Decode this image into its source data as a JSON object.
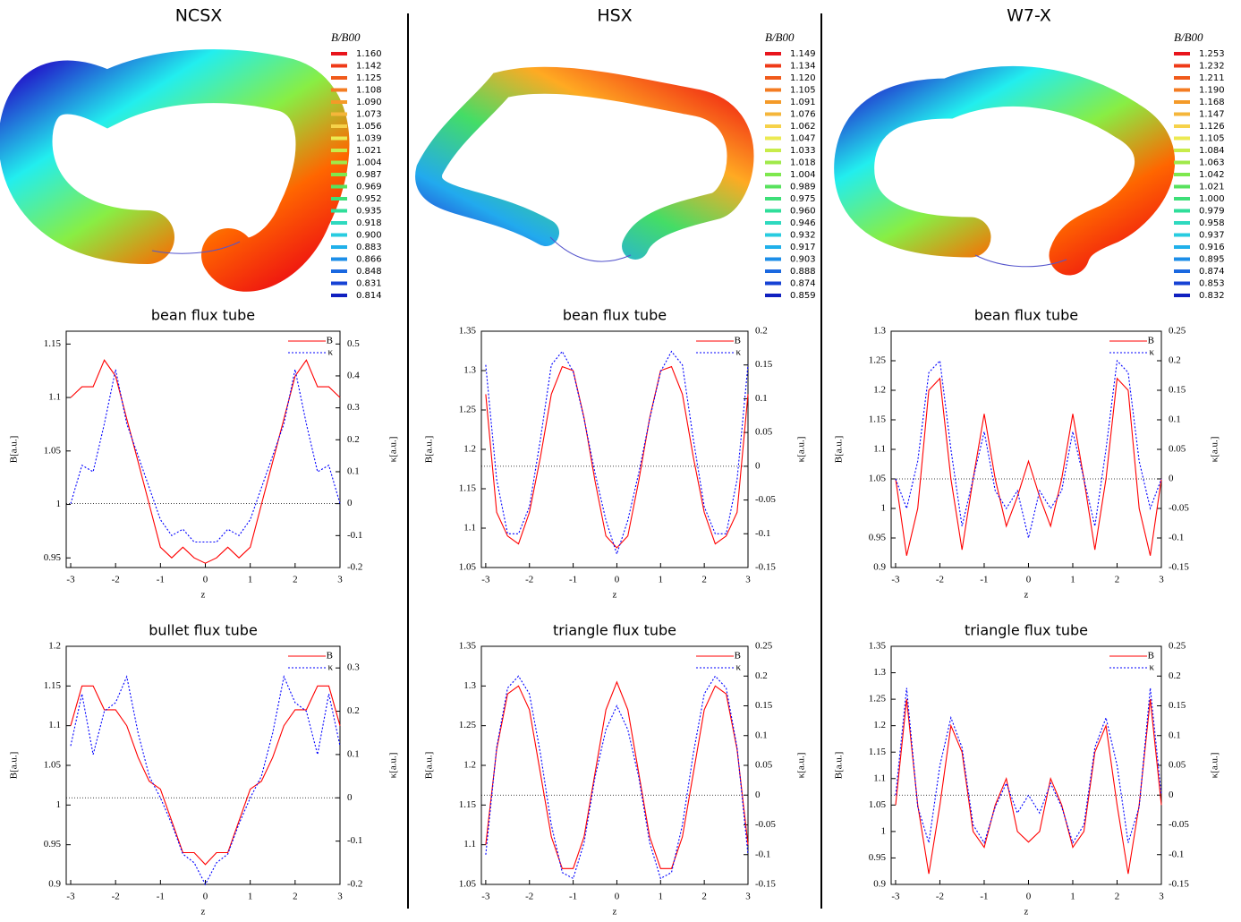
{
  "panels": [
    {
      "title": "NCSX",
      "colorbar": {
        "label": "B/B00",
        "levels": [
          "1.160",
          "1.142",
          "1.125",
          "1.108",
          "1.090",
          "1.073",
          "1.056",
          "1.039",
          "1.021",
          "1.004",
          "0.987",
          "0.969",
          "0.952",
          "0.935",
          "0.918",
          "0.900",
          "0.883",
          "0.866",
          "0.848",
          "0.831",
          "0.814"
        ]
      }
    },
    {
      "title": "HSX",
      "colorbar": {
        "label": "B/B00",
        "levels": [
          "1.149",
          "1.134",
          "1.120",
          "1.105",
          "1.091",
          "1.076",
          "1.062",
          "1.047",
          "1.033",
          "1.018",
          "1.004",
          "0.989",
          "0.975",
          "0.960",
          "0.946",
          "0.932",
          "0.917",
          "0.903",
          "0.888",
          "0.874",
          "0.859"
        ]
      }
    },
    {
      "title": "W7-X",
      "colorbar": {
        "label": "B/B00",
        "levels": [
          "1.253",
          "1.232",
          "1.211",
          "1.190",
          "1.168",
          "1.147",
          "1.126",
          "1.105",
          "1.084",
          "1.063",
          "1.042",
          "1.021",
          "1.000",
          "0.979",
          "0.958",
          "0.937",
          "0.916",
          "0.895",
          "0.874",
          "0.853",
          "0.832"
        ]
      }
    }
  ],
  "colorbar_colors": [
    "#e8141c",
    "#ef3a18",
    "#f05a1a",
    "#f47c22",
    "#f49a28",
    "#f5b63a",
    "#f6d24a",
    "#ecea52",
    "#c8ec4a",
    "#a0e94a",
    "#7ee84e",
    "#58e25e",
    "#3ddf78",
    "#2fde9a",
    "#2ed9bf",
    "#28cce0",
    "#20b0ea",
    "#1c8ee8",
    "#1a68e0",
    "#1642d4",
    "#1020c0"
  ],
  "chart_data": [
    {
      "type": "line",
      "title": "bean flux tube",
      "xlabel": "z",
      "ylabel": "B[a.u.]",
      "y2label": "κ[a.u.]",
      "legend": "upper right",
      "zero_line": true,
      "x": [
        -3,
        -2.75,
        -2.5,
        -2.25,
        -2,
        -1.75,
        -1.5,
        -1.25,
        -1,
        -0.75,
        -0.5,
        -0.25,
        0,
        0.25,
        0.5,
        0.75,
        1,
        1.25,
        1.5,
        1.75,
        2,
        2.25,
        2.5,
        2.75,
        3
      ],
      "xlim": [
        -3.1,
        3
      ],
      "xticks": [
        -3,
        -2,
        -1,
        0,
        1,
        2,
        3
      ],
      "ylim": [
        0.941,
        1.162
      ],
      "yticks": [
        0.95,
        1,
        1.05,
        1.1,
        1.15
      ],
      "y2lim": [
        -0.2,
        0.54
      ],
      "y2ticks": [
        -0.2,
        -0.1,
        0,
        0.1,
        0.2,
        0.3,
        0.4,
        0.5
      ],
      "series": [
        {
          "name": "B",
          "color": "#ff0000",
          "linestyle": "solid",
          "values": [
            1.1,
            1.11,
            1.11,
            1.135,
            1.12,
            1.08,
            1.04,
            1.0,
            0.96,
            0.95,
            0.96,
            0.95,
            0.945,
            0.95,
            0.96,
            0.95,
            0.96,
            1.0,
            1.04,
            1.08,
            1.12,
            1.135,
            1.11,
            1.11,
            1.1
          ]
        },
        {
          "name": "κ",
          "color": "#0000ff",
          "linestyle": "dotted",
          "axis": "y2",
          "values": [
            0.0,
            0.12,
            0.1,
            0.25,
            0.42,
            0.25,
            0.15,
            0.05,
            -0.05,
            -0.1,
            -0.08,
            -0.12,
            -0.12,
            -0.12,
            -0.08,
            -0.1,
            -0.05,
            0.05,
            0.15,
            0.25,
            0.42,
            0.25,
            0.1,
            0.12,
            0.0
          ]
        }
      ]
    },
    {
      "type": "line",
      "title": "bullet flux tube",
      "xlabel": "z",
      "ylabel": "B[a.u.]",
      "y2label": "κ[a.u.]",
      "legend": "upper right",
      "zero_line": true,
      "x": [
        -3,
        -2.75,
        -2.5,
        -2.25,
        -2,
        -1.75,
        -1.5,
        -1.25,
        -1,
        -0.75,
        -0.5,
        -0.25,
        0,
        0.25,
        0.5,
        0.75,
        1,
        1.25,
        1.5,
        1.75,
        2,
        2.25,
        2.5,
        2.75,
        3
      ],
      "xlim": [
        -3.1,
        3
      ],
      "xticks": [
        -3,
        -2,
        -1,
        0,
        1,
        2,
        3
      ],
      "ylim": [
        0.9,
        1.2
      ],
      "yticks": [
        0.9,
        0.95,
        1,
        1.05,
        1.1,
        1.15,
        1.2
      ],
      "y2lim": [
        -0.2,
        0.35
      ],
      "y2ticks": [
        -0.2,
        -0.1,
        0,
        0.1,
        0.2,
        0.3
      ],
      "series": [
        {
          "name": "B",
          "color": "#ff0000",
          "linestyle": "solid",
          "values": [
            1.1,
            1.15,
            1.15,
            1.12,
            1.12,
            1.1,
            1.06,
            1.03,
            1.02,
            0.98,
            0.94,
            0.94,
            0.925,
            0.94,
            0.94,
            0.98,
            1.02,
            1.03,
            1.06,
            1.1,
            1.12,
            1.12,
            1.15,
            1.15,
            1.1
          ]
        },
        {
          "name": "κ",
          "color": "#0000ff",
          "linestyle": "dotted",
          "axis": "y2",
          "values": [
            0.12,
            0.24,
            0.1,
            0.2,
            0.22,
            0.28,
            0.15,
            0.05,
            0.0,
            -0.06,
            -0.13,
            -0.15,
            -0.2,
            -0.15,
            -0.13,
            -0.06,
            0.0,
            0.05,
            0.15,
            0.28,
            0.22,
            0.2,
            0.1,
            0.24,
            0.12
          ]
        }
      ]
    },
    {
      "type": "line",
      "title": "bean flux tube",
      "xlabel": "z",
      "ylabel": "B[a.u.]",
      "y2label": "κ[a.u.]",
      "legend": "upper right",
      "zero_line": true,
      "x": [
        -3,
        -2.75,
        -2.5,
        -2.25,
        -2,
        -1.75,
        -1.5,
        -1.25,
        -1,
        -0.75,
        -0.5,
        -0.25,
        0,
        0.25,
        0.5,
        0.75,
        1,
        1.25,
        1.5,
        1.75,
        2,
        2.25,
        2.5,
        2.75,
        3
      ],
      "xlim": [
        -3.1,
        3
      ],
      "xticks": [
        -3,
        -2,
        -1,
        0,
        1,
        2,
        3
      ],
      "ylim": [
        1.05,
        1.35
      ],
      "yticks": [
        1.05,
        1.1,
        1.15,
        1.2,
        1.25,
        1.3,
        1.35
      ],
      "y2lim": [
        -0.15,
        0.2
      ],
      "y2ticks": [
        -0.15,
        -0.1,
        -0.05,
        0,
        0.05,
        0.1,
        0.15,
        0.2
      ],
      "series": [
        {
          "name": "B",
          "color": "#ff0000",
          "linestyle": "solid",
          "values": [
            1.27,
            1.12,
            1.09,
            1.08,
            1.12,
            1.19,
            1.27,
            1.305,
            1.3,
            1.24,
            1.16,
            1.09,
            1.075,
            1.09,
            1.16,
            1.24,
            1.3,
            1.305,
            1.27,
            1.19,
            1.12,
            1.08,
            1.09,
            1.12,
            1.27
          ]
        },
        {
          "name": "κ",
          "color": "#0000ff",
          "linestyle": "dotted",
          "axis": "y2",
          "values": [
            0.15,
            -0.02,
            -0.1,
            -0.1,
            -0.06,
            0.04,
            0.15,
            0.17,
            0.14,
            0.07,
            -0.01,
            -0.08,
            -0.13,
            -0.08,
            -0.01,
            0.07,
            0.14,
            0.17,
            0.15,
            0.04,
            -0.06,
            -0.1,
            -0.1,
            -0.02,
            0.15
          ]
        }
      ]
    },
    {
      "type": "line",
      "title": "triangle flux tube",
      "xlabel": "z",
      "ylabel": "B[a.u.]",
      "y2label": "κ[a.u.]",
      "legend": "upper right",
      "zero_line": true,
      "x": [
        -3,
        -2.75,
        -2.5,
        -2.25,
        -2,
        -1.75,
        -1.5,
        -1.25,
        -1,
        -0.75,
        -0.5,
        -0.25,
        0,
        0.25,
        0.5,
        0.75,
        1,
        1.25,
        1.5,
        1.75,
        2,
        2.25,
        2.5,
        2.75,
        3
      ],
      "xlim": [
        -3.1,
        3
      ],
      "xticks": [
        -3,
        -2,
        -1,
        0,
        1,
        2,
        3
      ],
      "ylim": [
        1.05,
        1.35
      ],
      "yticks": [
        1.05,
        1.1,
        1.15,
        1.2,
        1.25,
        1.3,
        1.35
      ],
      "y2lim": [
        -0.15,
        0.25
      ],
      "y2ticks": [
        -0.15,
        -0.1,
        -0.05,
        0,
        0.05,
        0.1,
        0.15,
        0.2,
        0.25
      ],
      "series": [
        {
          "name": "B",
          "color": "#ff0000",
          "linestyle": "solid",
          "values": [
            1.1,
            1.22,
            1.29,
            1.3,
            1.27,
            1.19,
            1.11,
            1.07,
            1.07,
            1.11,
            1.19,
            1.27,
            1.305,
            1.27,
            1.19,
            1.11,
            1.07,
            1.07,
            1.11,
            1.19,
            1.27,
            1.3,
            1.29,
            1.22,
            1.1
          ]
        },
        {
          "name": "κ",
          "color": "#0000ff",
          "linestyle": "dotted",
          "axis": "y2",
          "values": [
            -0.1,
            0.08,
            0.18,
            0.2,
            0.17,
            0.07,
            -0.05,
            -0.13,
            -0.14,
            -0.08,
            0.03,
            0.11,
            0.15,
            0.11,
            0.03,
            -0.08,
            -0.14,
            -0.13,
            -0.05,
            0.07,
            0.17,
            0.2,
            0.18,
            0.08,
            -0.1
          ]
        }
      ]
    },
    {
      "type": "line",
      "title": "bean flux tube",
      "xlabel": "z",
      "ylabel": "B[a.u.]",
      "y2label": "κ[a.u.]",
      "legend": "upper right",
      "zero_line": true,
      "x": [
        -3,
        -2.75,
        -2.5,
        -2.25,
        -2,
        -1.75,
        -1.5,
        -1.25,
        -1,
        -0.75,
        -0.5,
        -0.25,
        0,
        0.25,
        0.5,
        0.75,
        1,
        1.25,
        1.5,
        1.75,
        2,
        2.25,
        2.5,
        2.75,
        3
      ],
      "xlim": [
        -3.1,
        3
      ],
      "xticks": [
        -3,
        -2,
        -1,
        0,
        1,
        2,
        3
      ],
      "ylim": [
        0.9,
        1.3
      ],
      "yticks": [
        0.9,
        0.95,
        1,
        1.05,
        1.1,
        1.15,
        1.2,
        1.25,
        1.3
      ],
      "y2lim": [
        -0.15,
        0.25
      ],
      "y2ticks": [
        -0.15,
        -0.1,
        -0.05,
        0,
        0.05,
        0.1,
        0.15,
        0.2,
        0.25
      ],
      "series": [
        {
          "name": "B",
          "color": "#ff0000",
          "linestyle": "solid",
          "values": [
            1.05,
            0.92,
            1.0,
            1.2,
            1.22,
            1.05,
            0.93,
            1.05,
            1.16,
            1.05,
            0.97,
            1.02,
            1.08,
            1.02,
            0.97,
            1.05,
            1.16,
            1.05,
            0.93,
            1.05,
            1.22,
            1.2,
            1.0,
            0.92,
            1.05
          ]
        },
        {
          "name": "κ",
          "color": "#0000ff",
          "linestyle": "dotted",
          "axis": "y2",
          "values": [
            0.0,
            -0.05,
            0.03,
            0.18,
            0.2,
            0.05,
            -0.08,
            0.0,
            0.08,
            -0.02,
            -0.05,
            -0.02,
            -0.1,
            -0.02,
            -0.05,
            -0.02,
            0.08,
            0.0,
            -0.08,
            0.05,
            0.2,
            0.18,
            0.03,
            -0.05,
            0.0
          ]
        }
      ]
    },
    {
      "type": "line",
      "title": "triangle flux tube",
      "xlabel": "z",
      "ylabel": "B[a.u.]",
      "y2label": "κ[a.u.]",
      "legend": "upper right",
      "zero_line": true,
      "x": [
        -3,
        -2.75,
        -2.5,
        -2.25,
        -2,
        -1.75,
        -1.5,
        -1.25,
        -1,
        -0.75,
        -0.5,
        -0.25,
        0,
        0.25,
        0.5,
        0.75,
        1,
        1.25,
        1.5,
        1.75,
        2,
        2.25,
        2.5,
        2.75,
        3
      ],
      "xlim": [
        -3.1,
        3
      ],
      "xticks": [
        -3,
        -2,
        -1,
        0,
        1,
        2,
        3
      ],
      "ylim": [
        0.9,
        1.35
      ],
      "yticks": [
        0.9,
        0.95,
        1,
        1.05,
        1.1,
        1.15,
        1.2,
        1.25,
        1.3,
        1.35
      ],
      "y2lim": [
        -0.15,
        0.25
      ],
      "y2ticks": [
        -0.15,
        -0.1,
        -0.05,
        0,
        0.05,
        0.1,
        0.15,
        0.2,
        0.25
      ],
      "series": [
        {
          "name": "B",
          "color": "#ff0000",
          "linestyle": "solid",
          "values": [
            1.05,
            1.25,
            1.05,
            0.92,
            1.05,
            1.2,
            1.15,
            1.0,
            0.97,
            1.05,
            1.1,
            1.0,
            0.98,
            1.0,
            1.1,
            1.05,
            0.97,
            1.0,
            1.15,
            1.2,
            1.05,
            0.92,
            1.05,
            1.25,
            1.05
          ]
        },
        {
          "name": "κ",
          "color": "#0000ff",
          "linestyle": "dotted",
          "axis": "y2",
          "values": [
            0.0,
            0.18,
            -0.02,
            -0.08,
            0.05,
            0.13,
            0.08,
            -0.05,
            -0.08,
            -0.02,
            0.02,
            -0.03,
            0.0,
            -0.03,
            0.02,
            -0.02,
            -0.08,
            -0.05,
            0.08,
            0.13,
            0.05,
            -0.08,
            -0.02,
            0.18,
            0.0
          ]
        }
      ]
    }
  ]
}
